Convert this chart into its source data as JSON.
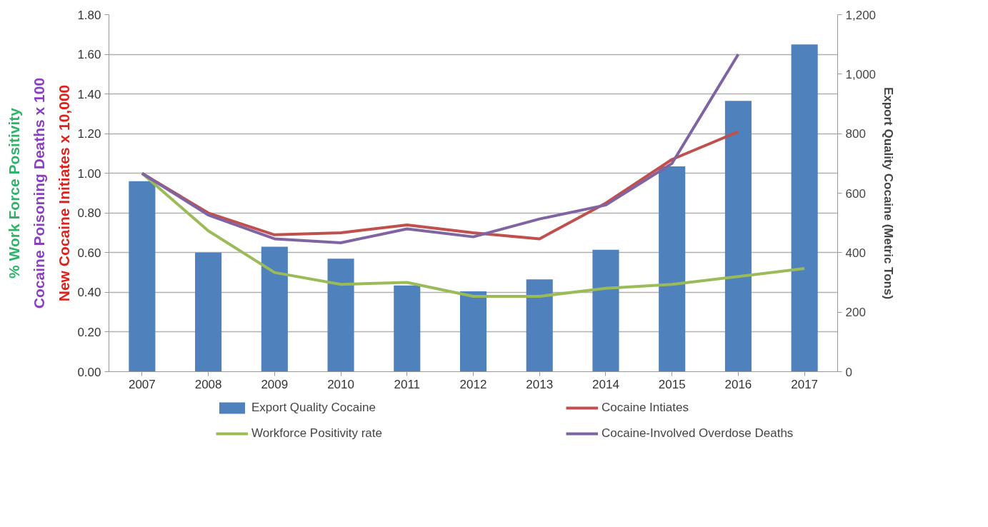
{
  "chart_data": {
    "type": "bar",
    "categories": [
      "2007",
      "2008",
      "2009",
      "2010",
      "2011",
      "2012",
      "2013",
      "2014",
      "2015",
      "2016",
      "2017"
    ],
    "ylabel": [
      {
        "text": "% Work Force Positivity",
        "color": "#2db36a"
      },
      {
        "text": "Cocaine Poisoning Deaths x 100",
        "color": "#8a3fc0"
      },
      {
        "text": "New Cocaine Initiates x 10,000",
        "color": "#e0201b"
      }
    ],
    "y2label": "Export Quality Cocaine (Metric Tons)",
    "series": [
      {
        "name": "Export Quality Cocaine",
        "axis": "y2",
        "color": "#4f81bd",
        "values": [
          640,
          400,
          420,
          380,
          290,
          270,
          310,
          410,
          690,
          910,
          1100
        ]
      },
      {
        "name": "Cocaine Intiates",
        "type": "line",
        "color": "#c0504d",
        "values": [
          1.0,
          0.8,
          0.69,
          0.7,
          0.74,
          0.7,
          0.67,
          0.85,
          1.07,
          1.21,
          null
        ]
      },
      {
        "name": "Workforce Positivity rate",
        "type": "line",
        "color": "#9bbb59",
        "values": [
          1.0,
          0.71,
          0.5,
          0.44,
          0.45,
          0.38,
          0.38,
          0.42,
          0.44,
          0.48,
          0.52
        ]
      },
      {
        "name": "Cocaine-Involved Overdose Deaths",
        "type": "line",
        "color": "#8064a2",
        "values": [
          1.0,
          0.79,
          0.67,
          0.65,
          0.72,
          0.68,
          0.77,
          0.84,
          1.05,
          1.6,
          null
        ]
      }
    ],
    "ylim": [
      0,
      1.8
    ],
    "yticks": [
      {
        "value": 0,
        "label": "0.00"
      },
      {
        "value": 0.2,
        "label": "0.20"
      },
      {
        "value": 0.4,
        "label": "0.40"
      },
      {
        "value": 0.6,
        "label": "0.60"
      },
      {
        "value": 0.8,
        "label": "0.80"
      },
      {
        "value": 1.0,
        "label": "1.00"
      },
      {
        "value": 1.2,
        "label": "1.20"
      },
      {
        "value": 1.4,
        "label": "1.40"
      },
      {
        "value": 1.6,
        "label": "1.60"
      },
      {
        "value": 1.8,
        "label": "1.80"
      }
    ],
    "y2lim": [
      0,
      1200
    ],
    "y2ticks": [
      0,
      200,
      400,
      600,
      800,
      {
        "value": 1000,
        "label": "1,000"
      },
      {
        "value": 1200,
        "label": "1,200"
      }
    ],
    "grid": "y",
    "legend": "bottom",
    "marker": "none",
    "line_style": "solid"
  }
}
